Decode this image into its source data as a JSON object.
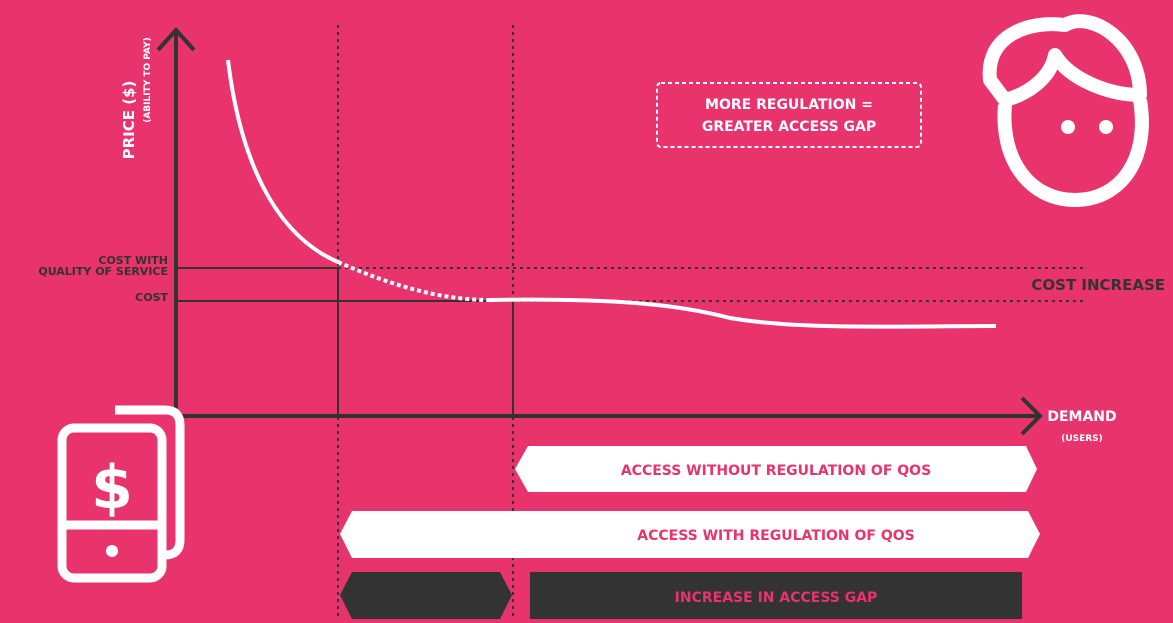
{
  "axes": {
    "y_title": "PRICE ($)",
    "y_subtitle": "(ABILITY TO PAY)",
    "x_title": "DEMAND",
    "x_subtitle": "(USERS)"
  },
  "levels": {
    "cost_with_qos": [
      "COST WITH",
      "QUALITY OF SERVICE"
    ],
    "cost": "COST",
    "cost_increase": "COST INCREASE"
  },
  "callout": [
    "MORE REGULATION =",
    "GREATER ACCESS GAP"
  ],
  "bands": {
    "without_regulation": "ACCESS WITHOUT REGULATION OF QOS",
    "with_regulation": "ACCESS WITH REGULATION OF QOS",
    "access_gap": "INCREASE IN ACCESS GAP"
  }
}
